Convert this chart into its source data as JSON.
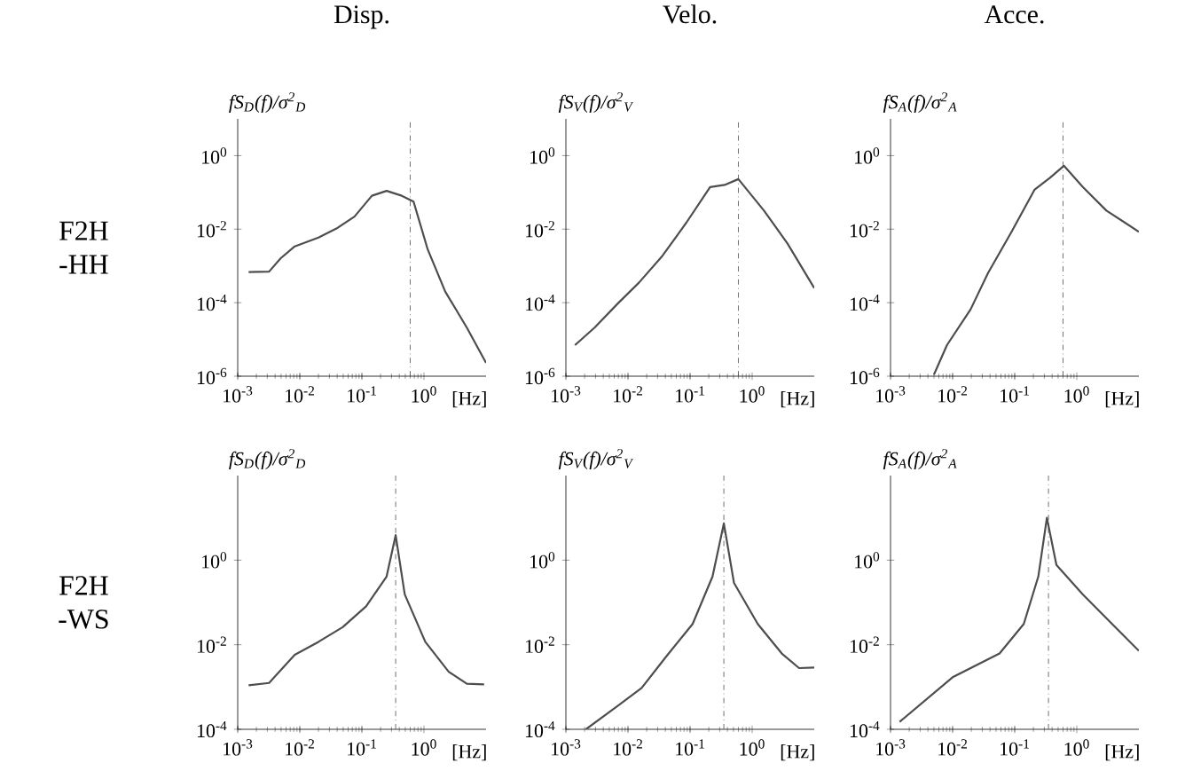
{
  "chart_data": [
    {
      "type": "line",
      "title": "Disp.",
      "ylabel": "fS$_{D}$(f)/σ$^{2}$$_{D}$",
      "xlabel": "[Hz]",
      "annotations": [
        "F2H -HH"
      ],
      "log": "xy",
      "xlim": [
        0.001,
        10
      ],
      "ylim": [
        1e-06,
        10
      ],
      "xticks": [
        {
          "value": 0.001,
          "label": "10$^{-3}$"
        },
        {
          "value": 0.01,
          "label": "10$^{-2}$"
        },
        {
          "value": 0.1,
          "label": "10$^{-1}$"
        },
        {
          "value": 1,
          "label": "10$^{0}$"
        }
      ],
      "yticks": [
        {
          "value": 1e-06,
          "label": "10$^{-6}$"
        },
        {
          "value": 0.0001,
          "label": "10$^{-4}$"
        },
        {
          "value": 0.01,
          "label": "10$^{-2}$"
        },
        {
          "value": 1,
          "label": "10$^{0}$"
        }
      ],
      "ref_lines": [
        {
          "axis": "x",
          "value": 0.6,
          "line_style": "dashdot"
        }
      ],
      "color": "#4d4d4d",
      "x": [
        0.0015,
        0.0032,
        0.0049,
        0.0083,
        0.02,
        0.039,
        0.076,
        0.145,
        0.25,
        0.44,
        0.68,
        1.15,
        2.2,
        4.9,
        10
      ],
      "values": [
        0.00068,
        0.0007,
        0.0016,
        0.0034,
        0.0059,
        0.0104,
        0.022,
        0.081,
        0.11,
        0.081,
        0.056,
        0.0028,
        0.0002,
        2.1e-05,
        2.3e-06
      ]
    },
    {
      "type": "line",
      "title": "Velo.",
      "ylabel": "fS$_{V}$(f)/σ$^{2}$$_{V}$",
      "xlabel": "[Hz]",
      "log": "xy",
      "xlim": [
        0.001,
        10
      ],
      "ylim": [
        1e-06,
        10
      ],
      "xticks": [
        {
          "value": 0.001,
          "label": "10$^{-3}$"
        },
        {
          "value": 0.01,
          "label": "10$^{-2}$"
        },
        {
          "value": 0.1,
          "label": "10$^{-1}$"
        },
        {
          "value": 1,
          "label": "10$^{0}$"
        }
      ],
      "yticks": [
        {
          "value": 1e-06,
          "label": "10$^{-6}$"
        },
        {
          "value": 0.0001,
          "label": "10$^{-4}$"
        },
        {
          "value": 0.01,
          "label": "10$^{-2}$"
        },
        {
          "value": 1,
          "label": "10$^{0}$"
        }
      ],
      "ref_lines": [
        {
          "axis": "x",
          "value": 0.6,
          "line_style": "dashdot"
        }
      ],
      "color": "#4d4d4d",
      "x": [
        0.0014,
        0.0029,
        0.0069,
        0.015,
        0.036,
        0.087,
        0.21,
        0.36,
        0.6,
        1.55,
        3.7,
        10
      ],
      "values": [
        7e-06,
        2.1e-05,
        9.6e-05,
        0.00035,
        0.0019,
        0.015,
        0.14,
        0.16,
        0.23,
        0.032,
        0.0041,
        0.00025
      ]
    },
    {
      "type": "line",
      "title": "Acce.",
      "ylabel": "fS$_{A}$(f)/σ$^{2}$$_{A}$",
      "xlabel": "[Hz]",
      "log": "xy",
      "xlim": [
        0.001,
        10
      ],
      "ylim": [
        1e-06,
        10
      ],
      "xticks": [
        {
          "value": 0.001,
          "label": "10$^{-3}$"
        },
        {
          "value": 0.01,
          "label": "10$^{-2}$"
        },
        {
          "value": 0.1,
          "label": "10$^{-1}$"
        },
        {
          "value": 1,
          "label": "10$^{0}$"
        }
      ],
      "yticks": [
        {
          "value": 1e-06,
          "label": "10$^{-6}$"
        },
        {
          "value": 0.0001,
          "label": "10$^{-4}$"
        },
        {
          "value": 0.01,
          "label": "10$^{-2}$"
        },
        {
          "value": 1,
          "label": "10$^{0}$"
        }
      ],
      "ref_lines": [
        {
          "axis": "x",
          "value": 0.6,
          "line_style": "dashdot"
        }
      ],
      "color": "#4d4d4d",
      "x": [
        0.005,
        0.0081,
        0.0195,
        0.037,
        0.089,
        0.21,
        0.37,
        0.62,
        1.25,
        3.0,
        10
      ],
      "values": [
        1.1e-06,
        7e-06,
        6.6e-05,
        0.00063,
        0.0085,
        0.12,
        0.25,
        0.53,
        0.14,
        0.032,
        0.0085
      ]
    },
    {
      "type": "line",
      "ylabel": "fS$_{D}$(f)/σ$^{2}$$_{D}$",
      "xlabel": "[Hz]",
      "annotations": [
        "F2H -WS"
      ],
      "log": "xy",
      "xlim": [
        0.001,
        10
      ],
      "ylim": [
        0.0001,
        100
      ],
      "xticks": [
        {
          "value": 0.001,
          "label": "10$^{-3}$"
        },
        {
          "value": 0.01,
          "label": "10$^{-2}$"
        },
        {
          "value": 0.1,
          "label": "10$^{-1}$"
        },
        {
          "value": 1,
          "label": "10$^{0}$"
        }
      ],
      "yticks": [
        {
          "value": 0.0001,
          "label": "10$^{-4}$"
        },
        {
          "value": 0.01,
          "label": "10$^{-2}$"
        },
        {
          "value": 1,
          "label": "10$^{0}$"
        }
      ],
      "ref_lines": [
        {
          "axis": "x",
          "value": 0.35,
          "line_style": "dashdot"
        }
      ],
      "color": "#4d4d4d",
      "x": [
        0.0015,
        0.0032,
        0.0083,
        0.02,
        0.049,
        0.117,
        0.25,
        0.35,
        0.49,
        1.05,
        2.5,
        4.9,
        9.3
      ],
      "values": [
        0.0011,
        0.00125,
        0.0058,
        0.0117,
        0.026,
        0.081,
        0.41,
        3.9,
        0.155,
        0.0117,
        0.0023,
        0.0012,
        0.00115
      ]
    },
    {
      "type": "line",
      "ylabel": "fS$_{V}$(f)/σ$^{2}$$_{V}$",
      "xlabel": "[Hz]",
      "log": "xy",
      "xlim": [
        0.001,
        10
      ],
      "ylim": [
        0.0001,
        100
      ],
      "xticks": [
        {
          "value": 0.001,
          "label": "10$^{-3}$"
        },
        {
          "value": 0.01,
          "label": "10$^{-2}$"
        },
        {
          "value": 0.1,
          "label": "10$^{-1}$"
        },
        {
          "value": 1,
          "label": "10$^{0}$"
        }
      ],
      "yticks": [
        {
          "value": 0.0001,
          "label": "10$^{-4}$"
        },
        {
          "value": 0.01,
          "label": "10$^{-2}$"
        },
        {
          "value": 1,
          "label": "10$^{0}$"
        }
      ],
      "ref_lines": [
        {
          "axis": "x",
          "value": 0.35,
          "line_style": "dashdot"
        }
      ],
      "color": "#4d4d4d",
      "x": [
        0.0021,
        0.0069,
        0.0166,
        0.041,
        0.11,
        0.23,
        0.35,
        0.51,
        1.23,
        3.0,
        5.7,
        10
      ],
      "values": [
        0.0001,
        0.00036,
        0.00095,
        0.0052,
        0.031,
        0.41,
        7.4,
        0.29,
        0.031,
        0.0062,
        0.0028,
        0.0029
      ]
    },
    {
      "type": "line",
      "ylabel": "fS$_{A}$(f)/σ$^{2}$$_{A}$",
      "xlabel": "[Hz]",
      "log": "xy",
      "xlim": [
        0.001,
        10
      ],
      "ylim": [
        0.0001,
        100
      ],
      "xticks": [
        {
          "value": 0.001,
          "label": "10$^{-3}$"
        },
        {
          "value": 0.01,
          "label": "10$^{-2}$"
        },
        {
          "value": 0.1,
          "label": "10$^{-1}$"
        },
        {
          "value": 1,
          "label": "10$^{0}$"
        }
      ],
      "yticks": [
        {
          "value": 0.0001,
          "label": "10$^{-4}$"
        },
        {
          "value": 0.01,
          "label": "10$^{-2}$"
        },
        {
          "value": 1,
          "label": "10$^{0}$"
        }
      ],
      "ref_lines": [
        {
          "axis": "x",
          "value": 0.35,
          "line_style": "dashdot"
        }
      ],
      "color": "#4d4d4d",
      "x": [
        0.0014,
        0.01,
        0.057,
        0.14,
        0.24,
        0.33,
        0.47,
        1.25,
        3.7,
        10
      ],
      "values": [
        0.00015,
        0.0017,
        0.0062,
        0.031,
        0.41,
        10,
        0.77,
        0.155,
        0.031,
        0.0072
      ]
    }
  ]
}
